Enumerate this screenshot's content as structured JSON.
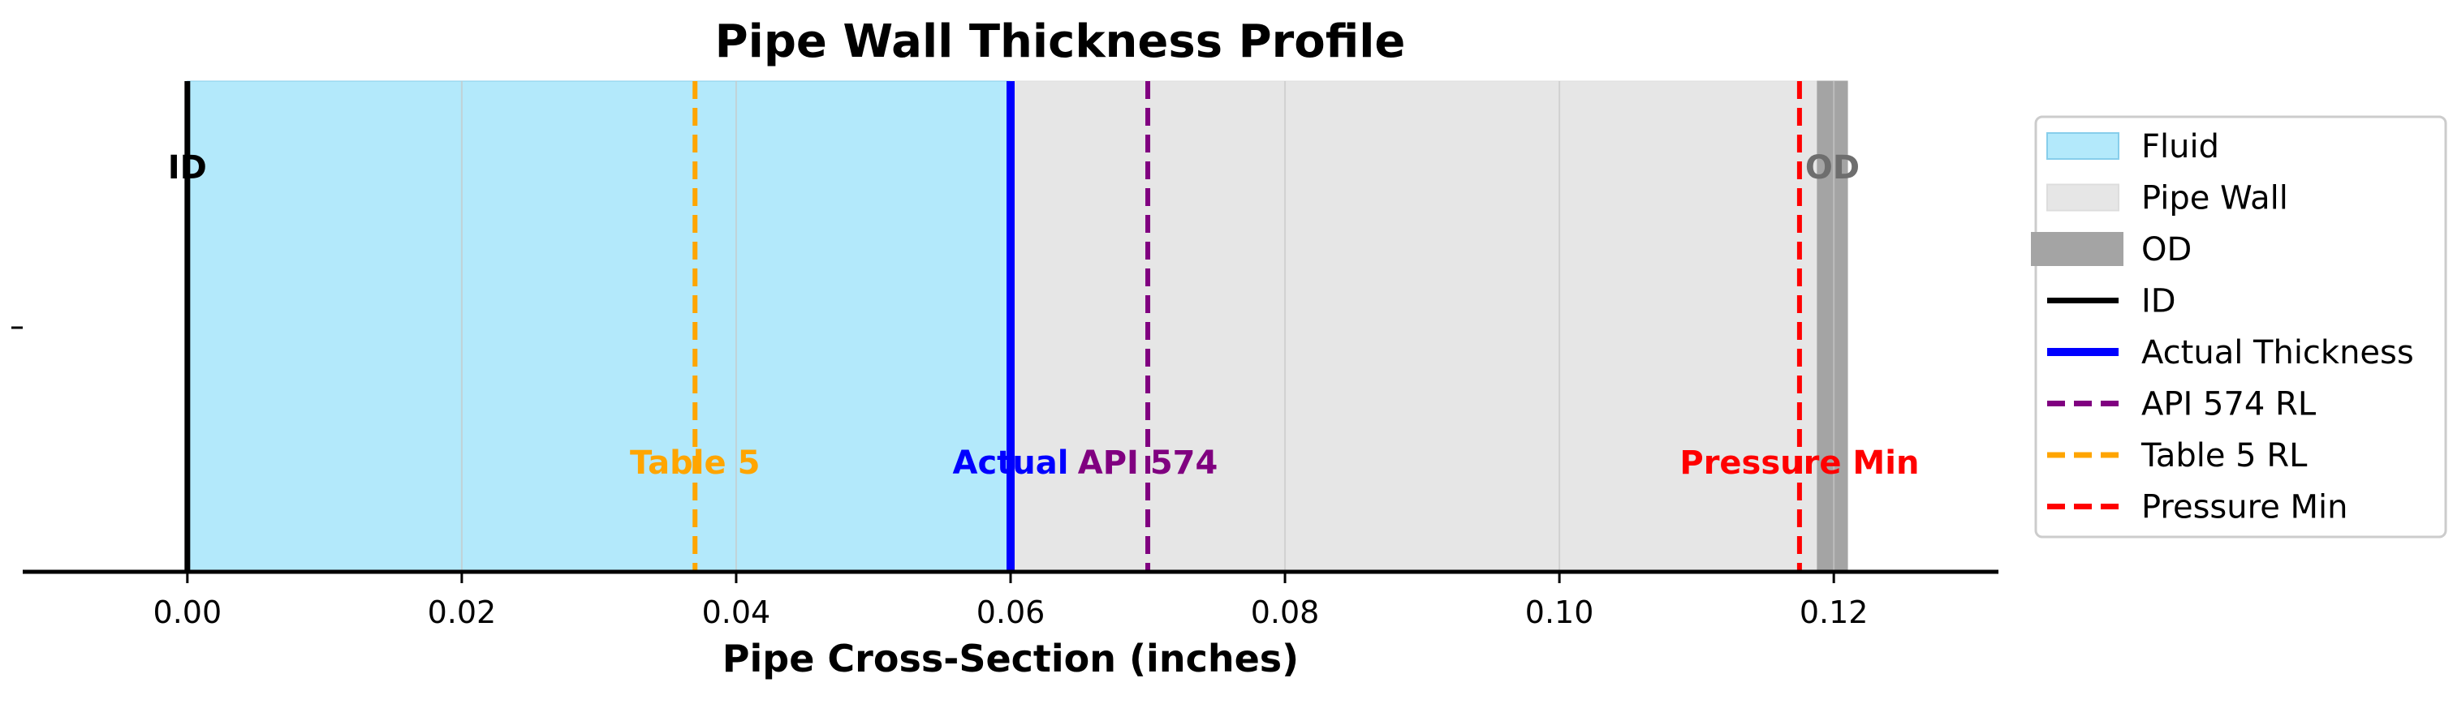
{
  "chart_data": {
    "type": "wall_thickness_profile",
    "title": "Pipe Wall Thickness Profile",
    "xlabel": "Pipe Cross-Section (inches)",
    "ylabel": "",
    "xlim": [
      -0.012,
      0.132
    ],
    "x_ticks": [
      0.0,
      0.02,
      0.04,
      0.06,
      0.08,
      0.1,
      0.12
    ],
    "x_tick_labels": [
      "0.00",
      "0.02",
      "0.04",
      "0.06",
      "0.08",
      "0.10",
      "0.12"
    ],
    "grid": true,
    "legend_position": "right",
    "regions": [
      {
        "name": "Fluid",
        "x0": 0.0,
        "x1": 0.06,
        "color": "#b3e9fb",
        "edge": "#87ceeb"
      },
      {
        "name": "Pipe Wall",
        "x0": 0.06,
        "x1": 0.1188,
        "color": "#e6e6e6",
        "edge": "#dddddd"
      },
      {
        "name": "OD",
        "x0": 0.1188,
        "x1": 0.121,
        "color": "#a4a4a4",
        "edge": "#a4a4a4"
      }
    ],
    "lines": [
      {
        "name": "ID",
        "x": 0.0,
        "color": "#000000",
        "style": "solid",
        "width": 7,
        "label": "ID",
        "label_pos": "top"
      },
      {
        "name": "Actual Thickness",
        "x": 0.06,
        "color": "#0000ff",
        "style": "solid",
        "width": 10,
        "label": "Actual",
        "label_pos": "bottom"
      },
      {
        "name": "API 574 RL",
        "x": 0.07,
        "color": "#800080",
        "style": "dashed",
        "width": 6,
        "label": "API 574",
        "label_pos": "bottom"
      },
      {
        "name": "Table 5 RL",
        "x": 0.037,
        "color": "#ffa500",
        "style": "dashed",
        "width": 6,
        "label": "Table 5",
        "label_pos": "bottom"
      },
      {
        "name": "Pressure Min",
        "x": 0.1175,
        "color": "#ff0000",
        "style": "dashed",
        "width": 6,
        "label": "Pressure Min",
        "label_pos": "bottom"
      }
    ],
    "od_label": {
      "text": "OD",
      "x": 0.1199,
      "color": "#6e6e6e"
    },
    "legend": [
      {
        "name": "Fluid",
        "kind": "patch",
        "color": "#b3e9fb",
        "edge": "#87ceeb"
      },
      {
        "name": "Pipe Wall",
        "kind": "patch",
        "color": "#e6e6e6",
        "edge": "#dddddd"
      },
      {
        "name": "OD",
        "kind": "thick",
        "color": "#a4a4a4"
      },
      {
        "name": "ID",
        "kind": "line",
        "color": "#000000",
        "style": "solid"
      },
      {
        "name": "Actual Thickness",
        "kind": "line",
        "color": "#0000ff",
        "style": "solid-thick"
      },
      {
        "name": "API 574 RL",
        "kind": "line",
        "color": "#800080",
        "style": "dashed"
      },
      {
        "name": "Table 5 RL",
        "kind": "line",
        "color": "#ffa500",
        "style": "dashed"
      },
      {
        "name": "Pressure Min",
        "kind": "line",
        "color": "#ff0000",
        "style": "dashed"
      }
    ]
  }
}
